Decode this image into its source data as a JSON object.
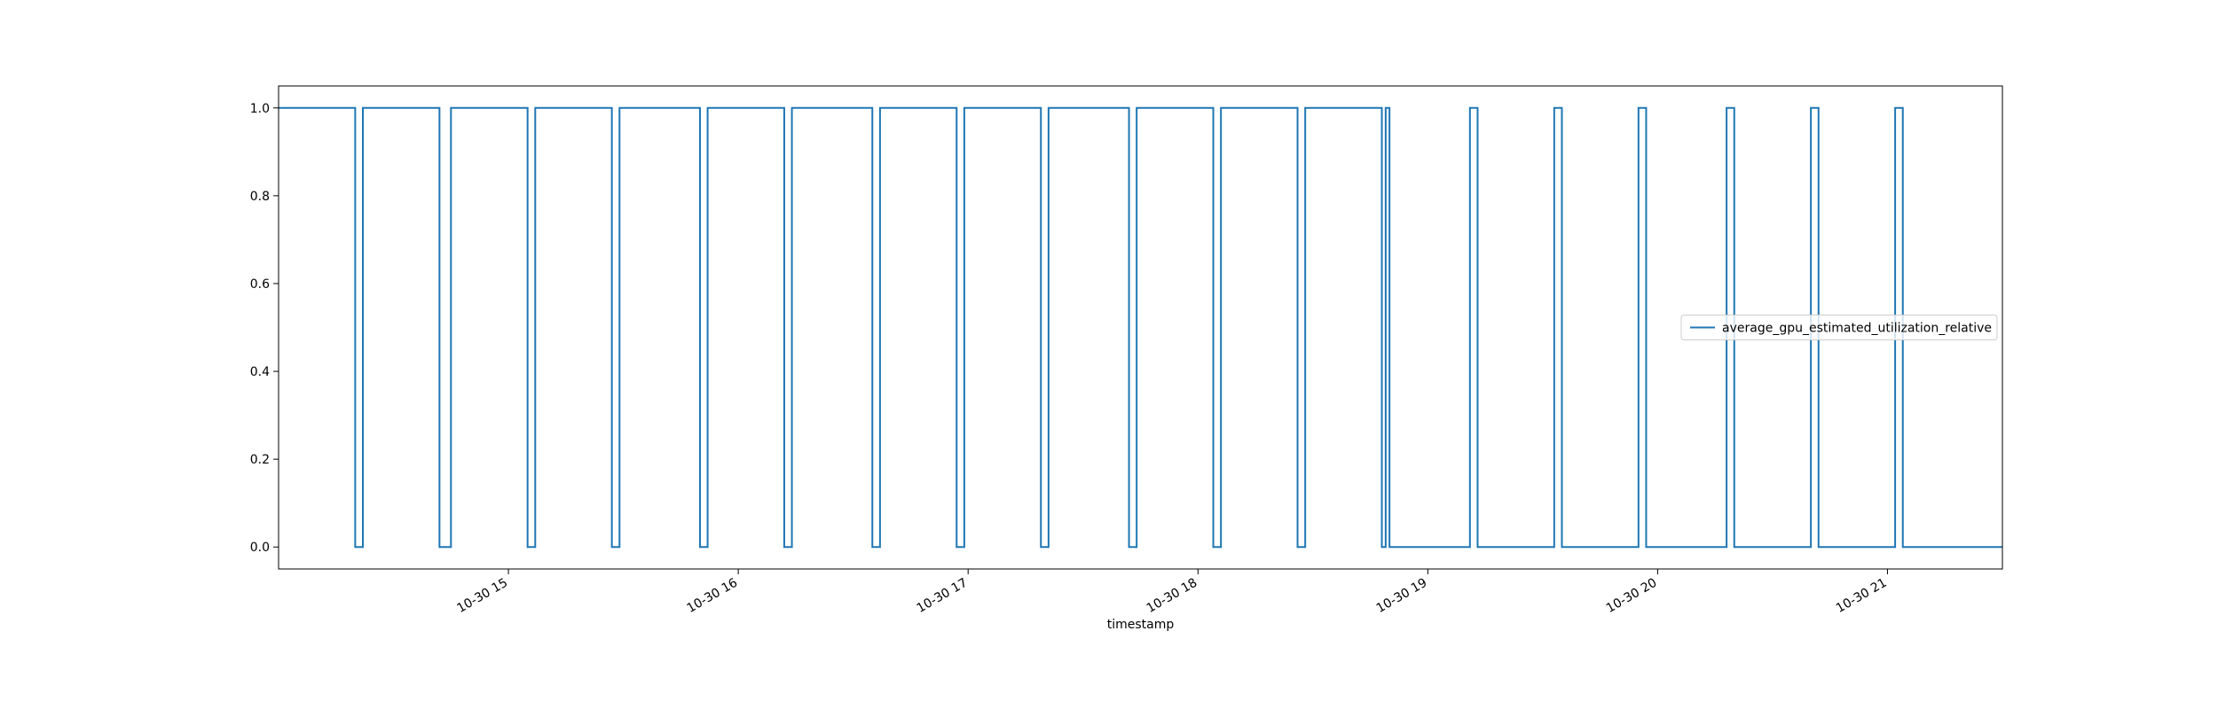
{
  "chart_data": {
    "type": "line",
    "step": true,
    "title": "",
    "xlabel": "timestamp",
    "ylabel": "",
    "grid": false,
    "legend_position": "center-right",
    "series": [
      {
        "name": "average_gpu_estimated_utilization_relative",
        "color": "#1f77b4",
        "x": [
          "2024-10-30 14:00",
          "2024-10-30 14:20",
          "2024-10-30 14:20",
          "2024-10-30 14:22",
          "2024-10-30 14:22",
          "2024-10-30 14:42",
          "2024-10-30 14:42",
          "2024-10-30 14:45",
          "2024-10-30 14:45",
          "2024-10-30 15:05",
          "2024-10-30 15:05",
          "2024-10-30 15:07",
          "2024-10-30 15:07",
          "2024-10-30 15:27",
          "2024-10-30 15:27",
          "2024-10-30 15:29",
          "2024-10-30 15:29",
          "2024-10-30 15:50",
          "2024-10-30 15:50",
          "2024-10-30 15:52",
          "2024-10-30 15:52",
          "2024-10-30 16:12",
          "2024-10-30 16:12",
          "2024-10-30 16:14",
          "2024-10-30 16:14",
          "2024-10-30 16:35",
          "2024-10-30 16:35",
          "2024-10-30 16:37",
          "2024-10-30 16:37",
          "2024-10-30 16:57",
          "2024-10-30 16:57",
          "2024-10-30 16:59",
          "2024-10-30 16:59",
          "2024-10-30 17:19",
          "2024-10-30 17:19",
          "2024-10-30 17:21",
          "2024-10-30 17:21",
          "2024-10-30 17:42",
          "2024-10-30 17:42",
          "2024-10-30 17:44",
          "2024-10-30 17:44",
          "2024-10-30 18:04",
          "2024-10-30 18:04",
          "2024-10-30 18:06",
          "2024-10-30 18:06",
          "2024-10-30 18:26",
          "2024-10-30 18:26",
          "2024-10-30 18:28",
          "2024-10-30 18:28",
          "2024-10-30 18:48",
          "2024-10-30 18:48",
          "2024-10-30 18:49",
          "2024-10-30 18:49",
          "2024-10-30 18:50",
          "2024-10-30 18:50",
          "2024-10-30 19:11",
          "2024-10-30 19:11",
          "2024-10-30 19:13",
          "2024-10-30 19:13",
          "2024-10-30 19:33",
          "2024-10-30 19:33",
          "2024-10-30 19:35",
          "2024-10-30 19:35",
          "2024-10-30 19:55",
          "2024-10-30 19:55",
          "2024-10-30 19:57",
          "2024-10-30 19:57",
          "2024-10-30 20:18",
          "2024-10-30 20:18",
          "2024-10-30 20:20",
          "2024-10-30 20:20",
          "2024-10-30 20:40",
          "2024-10-30 20:40",
          "2024-10-30 20:42",
          "2024-10-30 20:42",
          "2024-10-30 21:02",
          "2024-10-30 21:02",
          "2024-10-30 21:04",
          "2024-10-30 21:04",
          "2024-10-30 21:30"
        ],
        "y": [
          1,
          1,
          0,
          0,
          1,
          1,
          0,
          0,
          1,
          1,
          0,
          0,
          1,
          1,
          0,
          0,
          1,
          1,
          0,
          0,
          1,
          1,
          0,
          0,
          1,
          1,
          0,
          0,
          1,
          1,
          0,
          0,
          1,
          1,
          0,
          0,
          1,
          1,
          0,
          0,
          1,
          1,
          0,
          0,
          1,
          1,
          0,
          0,
          1,
          1,
          0,
          0,
          1,
          1,
          0,
          0,
          1,
          1,
          0,
          0,
          1,
          1,
          0,
          0,
          1,
          1,
          0,
          0,
          1,
          1,
          0,
          0,
          1,
          1,
          0,
          0,
          1,
          1,
          0,
          0
        ]
      }
    ],
    "xlim": [
      "2024-10-30 14:00",
      "2024-10-30 21:30"
    ],
    "ylim": [
      -0.05,
      1.05
    ],
    "xticks": [
      {
        "value": "2024-10-30 15:00",
        "label": "10-30 15"
      },
      {
        "value": "2024-10-30 16:00",
        "label": "10-30 16"
      },
      {
        "value": "2024-10-30 17:00",
        "label": "10-30 17"
      },
      {
        "value": "2024-10-30 18:00",
        "label": "10-30 18"
      },
      {
        "value": "2024-10-30 19:00",
        "label": "10-30 19"
      },
      {
        "value": "2024-10-30 20:00",
        "label": "10-30 20"
      },
      {
        "value": "2024-10-30 21:00",
        "label": "10-30 21"
      }
    ],
    "yticks": [
      {
        "value": 0.0,
        "label": "0.0"
      },
      {
        "value": 0.2,
        "label": "0.2"
      },
      {
        "value": 0.4,
        "label": "0.4"
      },
      {
        "value": 0.6,
        "label": "0.6"
      },
      {
        "value": 0.8,
        "label": "0.8"
      },
      {
        "value": 1.0,
        "label": "1.0"
      }
    ]
  }
}
